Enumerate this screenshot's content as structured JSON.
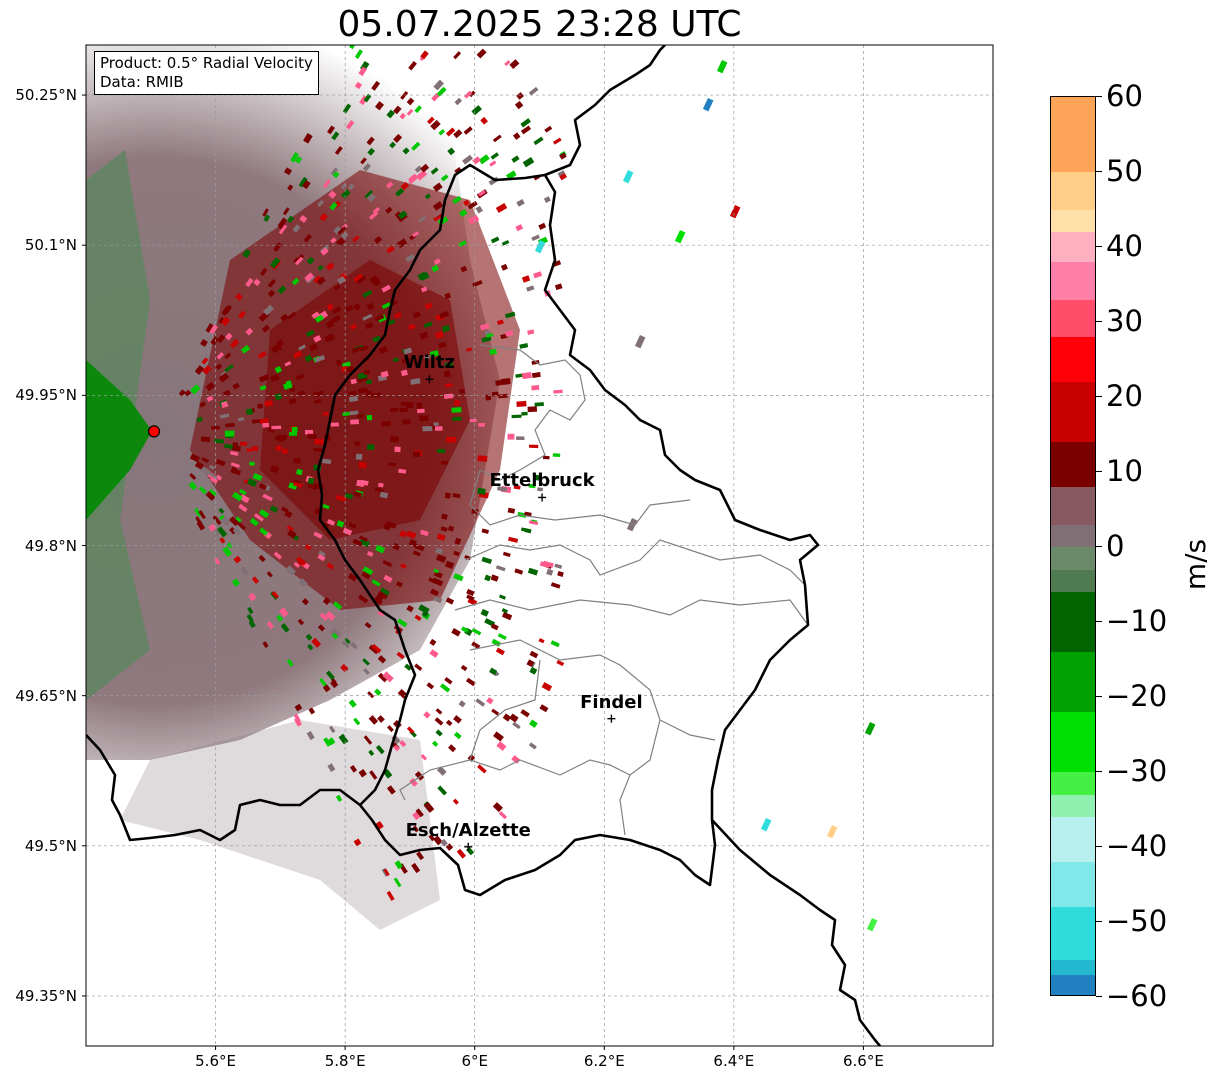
{
  "title": "05.07.2025 23:28 UTC",
  "info_box": {
    "line1": "Product: 0.5° Radial Velocity",
    "line2": "Data: RMIB"
  },
  "map_extent": {
    "lon_min": 5.4,
    "lon_max": 6.8,
    "lat_min": 49.3,
    "lat_max": 50.3
  },
  "radar_site": {
    "lon": 5.505,
    "lat": 49.914,
    "color": "#ff0000"
  },
  "cities": [
    {
      "name": "Wiltz",
      "lon": 5.93,
      "lat": 49.966
    },
    {
      "name": "Ettelbruck",
      "lon": 6.104,
      "lat": 49.848
    },
    {
      "name": "Findel",
      "lon": 6.211,
      "lat": 49.627
    },
    {
      "name": "Esch/Alzette",
      "lon": 5.99,
      "lat": 49.499
    }
  ],
  "lat_ticks": [
    "50.25°N",
    "50.1°N",
    "49.95°N",
    "49.8°N",
    "49.65°N",
    "49.5°N",
    "49.35°N"
  ],
  "lat_values": [
    50.25,
    50.1,
    49.95,
    49.8,
    49.65,
    49.5,
    49.35
  ],
  "lon_ticks": [
    "5.6°E",
    "5.8°E",
    "6°E",
    "6.2°E",
    "6.4°E",
    "6.6°E"
  ],
  "lon_values": [
    5.6,
    5.8,
    6.0,
    6.2,
    6.4,
    6.6
  ],
  "colorbar": {
    "label": "m/s",
    "min": -60,
    "max": 60,
    "tick_labels": [
      "60",
      "50",
      "40",
      "30",
      "20",
      "10",
      "0",
      "−10",
      "−20",
      "−30",
      "−40",
      "−50",
      "−60"
    ],
    "tick_values": [
      60,
      50,
      40,
      30,
      20,
      10,
      0,
      -10,
      -20,
      -30,
      -40,
      -50,
      -60
    ],
    "stops": [
      {
        "from": 50,
        "to": 60,
        "color": "#ffa55a"
      },
      {
        "from": 45,
        "to": 50,
        "color": "#ffcf8a"
      },
      {
        "from": 42,
        "to": 45,
        "color": "#ffe0a8"
      },
      {
        "from": 38,
        "to": 42,
        "color": "#ffb0c0"
      },
      {
        "from": 33,
        "to": 38,
        "color": "#ff7fa8"
      },
      {
        "from": 28,
        "to": 33,
        "color": "#ff4d6a"
      },
      {
        "from": 22,
        "to": 28,
        "color": "#ff0008"
      },
      {
        "from": 14,
        "to": 22,
        "color": "#c80000"
      },
      {
        "from": 8,
        "to": 14,
        "color": "#7a0000"
      },
      {
        "from": 3,
        "to": 8,
        "color": "#875a62"
      },
      {
        "from": 0,
        "to": 3,
        "color": "#806f74"
      },
      {
        "from": -3,
        "to": 0,
        "color": "#6a8a6a"
      },
      {
        "from": -6,
        "to": -3,
        "color": "#507a50"
      },
      {
        "from": -14,
        "to": -6,
        "color": "#006400"
      },
      {
        "from": -22,
        "to": -14,
        "color": "#00a000"
      },
      {
        "from": -30,
        "to": -22,
        "color": "#00e000"
      },
      {
        "from": -33,
        "to": -30,
        "color": "#44f044"
      },
      {
        "from": -36,
        "to": -33,
        "color": "#90f0b0"
      },
      {
        "from": -42,
        "to": -36,
        "color": "#b8f0f0"
      },
      {
        "from": -48,
        "to": -42,
        "color": "#80e8e8"
      },
      {
        "from": -55,
        "to": -48,
        "color": "#30dcdc"
      },
      {
        "from": -57,
        "to": -55,
        "color": "#22b8d0"
      },
      {
        "from": -60,
        "to": -57,
        "color": "#2080c0"
      }
    ]
  },
  "colors": {
    "inbound_dark_green": "#006400",
    "outbound_dark_red": "#7a0000",
    "zero_gray": "#806f74",
    "border": "#000000",
    "admin_border": "#808080"
  }
}
